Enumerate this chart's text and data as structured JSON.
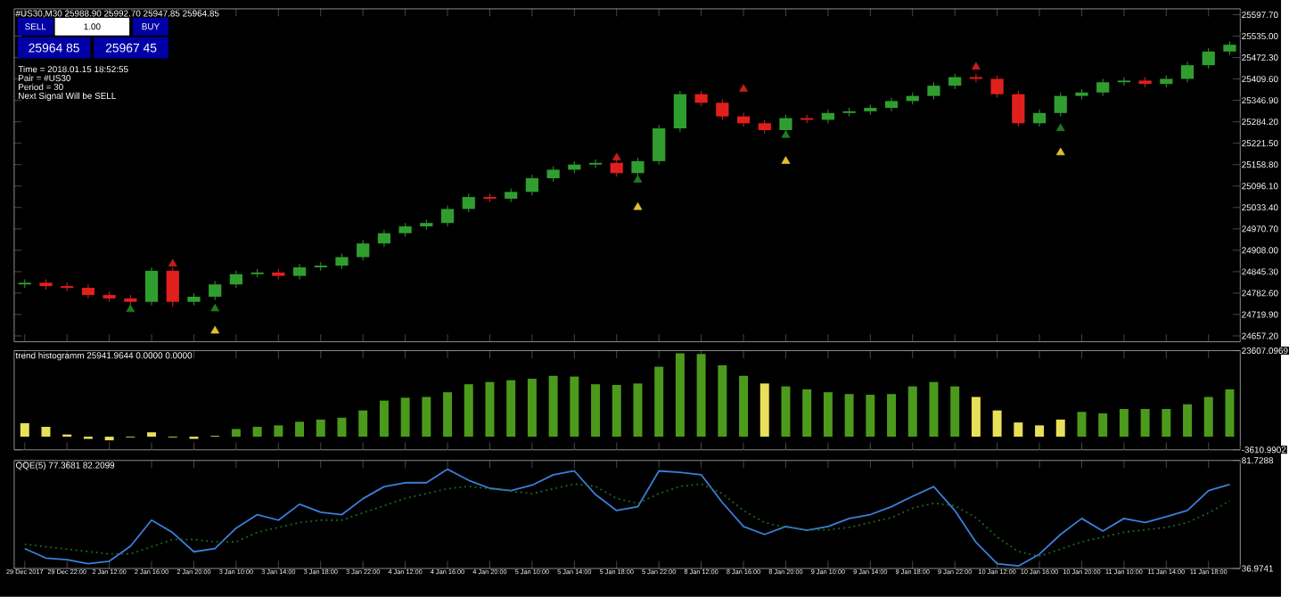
{
  "chart_data": [
    {
      "type": "candlestick",
      "title": "#US30,M30 25988.90 25992.70 25947.85 25964.85",
      "annotations": [
        "SELL",
        "1.00",
        "BUY",
        "25964 85",
        "25967 45",
        "Time = 2018.01.15 18:52:55",
        "Pair = #US30",
        "Period = 30",
        "Next Signal Will be SELL"
      ],
      "categories": [
        null,
        null,
        null,
        null,
        null,
        null,
        null,
        null,
        null,
        null,
        null,
        null,
        null,
        null,
        null,
        null,
        null,
        null,
        null,
        null,
        null,
        null,
        null,
        null,
        null,
        null,
        null,
        null,
        null,
        null,
        null,
        null,
        null,
        null,
        null,
        null,
        null,
        null,
        null,
        null,
        null,
        null,
        null,
        null,
        null,
        null,
        null,
        null,
        null,
        null,
        null,
        null,
        null,
        null,
        null,
        null,
        null,
        null
      ],
      "ohlc": [
        [
          24808,
          24823,
          24798,
          24813
        ],
        [
          24813,
          24823,
          24793,
          24803
        ],
        [
          24803,
          24813,
          24788,
          24798
        ],
        [
          24798,
          24808,
          24767,
          24777
        ],
        [
          24777,
          24787,
          24757,
          24767
        ],
        [
          24767,
          24777,
          24747,
          24757
        ],
        [
          24757,
          24858,
          24747,
          24848
        ],
        [
          24848,
          24858,
          24742,
          24757
        ],
        [
          24757,
          24782,
          24747,
          24772
        ],
        [
          24772,
          24818,
          24762,
          24808
        ],
        [
          24808,
          24848,
          24798,
          24838
        ],
        [
          24838,
          24853,
          24828,
          24843
        ],
        [
          24843,
          24853,
          24823,
          24833
        ],
        [
          24833,
          24868,
          24823,
          24858
        ],
        [
          24858,
          24873,
          24848,
          24863
        ],
        [
          24863,
          24898,
          24853,
          24888
        ],
        [
          24888,
          24938,
          24878,
          24928
        ],
        [
          24928,
          24968,
          24918,
          24958
        ],
        [
          24958,
          24988,
          24948,
          24978
        ],
        [
          24978,
          24998,
          24968,
          24988
        ],
        [
          24988,
          25039,
          24978,
          25029
        ],
        [
          25029,
          25074,
          25019,
          25064
        ],
        [
          25064,
          25074,
          25049,
          25059
        ],
        [
          25059,
          25089,
          25049,
          25079
        ],
        [
          25079,
          25129,
          25069,
          25119
        ],
        [
          25119,
          25154,
          25109,
          25144
        ],
        [
          25144,
          25169,
          25134,
          25159
        ],
        [
          25159,
          25174,
          25149,
          25164
        ],
        [
          25164,
          25174,
          25124,
          25134
        ],
        [
          25134,
          25179,
          25124,
          25169
        ],
        [
          25169,
          25275,
          25159,
          25265
        ],
        [
          25265,
          25375,
          25255,
          25365
        ],
        [
          25365,
          25375,
          25330,
          25340
        ],
        [
          25340,
          25350,
          25290,
          25300
        ],
        [
          25300,
          25310,
          25270,
          25280
        ],
        [
          25280,
          25290,
          25250,
          25260
        ],
        [
          25260,
          25305,
          25250,
          25295
        ],
        [
          25295,
          25305,
          25280,
          25290
        ],
        [
          25290,
          25320,
          25280,
          25310
        ],
        [
          25310,
          25325,
          25300,
          25315
        ],
        [
          25315,
          25335,
          25305,
          25325
        ],
        [
          25325,
          25355,
          25315,
          25345
        ],
        [
          25345,
          25370,
          25335,
          25360
        ],
        [
          25360,
          25400,
          25350,
          25390
        ],
        [
          25390,
          25425,
          25380,
          25415
        ],
        [
          25415,
          25425,
          25400,
          25410
        ],
        [
          25410,
          25420,
          25355,
          25365
        ],
        [
          25365,
          25375,
          25270,
          25280
        ],
        [
          25280,
          25320,
          25270,
          25310
        ],
        [
          25310,
          25370,
          25300,
          25360
        ],
        [
          25360,
          25380,
          25350,
          25370
        ],
        [
          25370,
          25410,
          25360,
          25400
        ],
        [
          25400,
          25415,
          25390,
          25405
        ],
        [
          25405,
          25415,
          25385,
          25395
        ],
        [
          25395,
          25420,
          25385,
          25410
        ],
        [
          25410,
          25460,
          25400,
          25450
        ],
        [
          25450,
          25500,
          25440,
          25490
        ],
        [
          25490,
          25520,
          25480,
          25510
        ]
      ],
      "colors": [
        "#2f9e2f",
        "#e0201c",
        "#e0201c",
        "#e0201c",
        "#e0201c",
        "#e0201c",
        "#2f9e2f",
        "#e0201c",
        "#2f9e2f",
        "#2f9e2f",
        "#2f9e2f",
        "#2f9e2f",
        "#e0201c",
        "#2f9e2f",
        "#2f9e2f",
        "#2f9e2f",
        "#2f9e2f",
        "#2f9e2f",
        "#2f9e2f",
        "#2f9e2f",
        "#2f9e2f",
        "#2f9e2f",
        "#e0201c",
        "#2f9e2f",
        "#2f9e2f",
        "#2f9e2f",
        "#2f9e2f",
        "#2f9e2f",
        "#e0201c",
        "#2f9e2f",
        "#2f9e2f",
        "#2f9e2f",
        "#e0201c",
        "#e0201c",
        "#e0201c",
        "#e0201c",
        "#2f9e2f",
        "#e0201c",
        "#2f9e2f",
        "#2f9e2f",
        "#2f9e2f",
        "#2f9e2f",
        "#2f9e2f",
        "#2f9e2f",
        "#2f9e2f",
        "#e0201c",
        "#e0201c",
        "#e0201c",
        "#2f9e2f",
        "#2f9e2f",
        "#2f9e2f",
        "#2f9e2f",
        "#2f9e2f",
        "#e0201c",
        "#2f9e2f",
        "#2f9e2f",
        "#2f9e2f",
        "#2f9e2f"
      ],
      "series": [
        {
          "type": "scatter",
          "color": "#c0201c",
          "values": [
            null,
            null,
            null,
            null,
            null,
            null,
            null,
            24868,
            null,
            null,
            null,
            null,
            null,
            null,
            null,
            null,
            null,
            null,
            null,
            null,
            null,
            null,
            null,
            null,
            null,
            null,
            null,
            null,
            25179,
            null,
            null,
            null,
            null,
            null,
            25380,
            null,
            null,
            null,
            null,
            null,
            null,
            null,
            null,
            null,
            null,
            25445,
            null,
            null,
            null,
            null,
            null,
            null,
            null,
            null,
            null,
            null,
            null,
            null
          ]
        },
        {
          "type": "scatter",
          "color": "#1f7a1f",
          "values": [
            null,
            null,
            null,
            null,
            null,
            24735,
            null,
            null,
            null,
            24737,
            null,
            null,
            null,
            null,
            null,
            null,
            null,
            null,
            null,
            null,
            null,
            null,
            null,
            null,
            null,
            null,
            null,
            null,
            null,
            25114,
            null,
            null,
            null,
            null,
            null,
            null,
            25245,
            null,
            null,
            null,
            null,
            null,
            null,
            null,
            null,
            null,
            null,
            null,
            null,
            25265,
            null,
            null,
            null,
            null,
            null,
            null,
            null,
            null
          ]
        },
        {
          "type": "scatter",
          "color": "#e0c030",
          "values": [
            null,
            null,
            null,
            null,
            null,
            null,
            null,
            null,
            null,
            24672,
            null,
            null,
            null,
            null,
            null,
            null,
            null,
            null,
            null,
            null,
            null,
            null,
            null,
            null,
            null,
            null,
            null,
            null,
            null,
            25034,
            null,
            null,
            null,
            null,
            null,
            null,
            25169,
            null,
            null,
            null,
            null,
            null,
            null,
            null,
            null,
            null,
            null,
            null,
            null,
            25194,
            null,
            null,
            null,
            null,
            null,
            null,
            null,
            null
          ]
        }
      ],
      "marker": "triangle",
      "ylim": [
        24640,
        25615
      ],
      "yticks": [
        {
          "value": 24657.2,
          "label": "24657.20"
        },
        {
          "value": 24719.9,
          "label": "24719.90"
        },
        {
          "value": 24782.6,
          "label": "24782.60"
        },
        {
          "value": 24845.3,
          "label": "24845.30"
        },
        {
          "value": 24908.0,
          "label": "24908.00"
        },
        {
          "value": 24970.7,
          "label": "24970.70"
        },
        {
          "value": 25033.4,
          "label": "25033.40"
        },
        {
          "value": 25096.1,
          "label": "25096.10"
        },
        {
          "value": 25158.8,
          "label": "25158.80"
        },
        {
          "value": 25221.5,
          "label": "25221.50"
        },
        {
          "value": 25284.2,
          "label": "25284.20"
        },
        {
          "value": 25346.9,
          "label": "25346.90"
        },
        {
          "value": 25409.6,
          "label": "25409.60"
        },
        {
          "value": 25472.3,
          "label": "25472.30"
        },
        {
          "value": 25535.0,
          "label": "25535.00"
        },
        {
          "value": 25597.7,
          "label": "25597.70"
        }
      ],
      "tick_labels": "y"
    },
    {
      "type": "bar",
      "title": "trend histogramm 25941.9644 0.0000 0.0000",
      "categories": [
        null,
        null,
        null,
        null,
        null,
        null,
        null,
        null,
        null,
        null,
        null,
        null,
        null,
        null,
        null,
        null,
        null,
        null,
        null,
        null,
        null,
        null,
        null,
        null,
        null,
        null,
        null,
        null,
        null,
        null,
        null,
        null,
        null,
        null,
        null,
        null,
        null,
        null,
        null,
        null,
        null,
        null,
        null,
        null,
        null,
        null,
        null,
        null,
        null,
        null,
        null,
        null,
        null,
        null,
        null,
        null,
        null,
        null
      ],
      "values": [
        3700,
        2700,
        600,
        -600,
        -1000,
        -200,
        1200,
        -200,
        -600,
        200,
        2100,
        2700,
        3100,
        4100,
        4700,
        5200,
        7200,
        9900,
        10700,
        10900,
        12200,
        14400,
        15000,
        15500,
        15900,
        16700,
        16500,
        14400,
        14200,
        14600,
        19200,
        22900,
        22700,
        19600,
        16700,
        14600,
        13800,
        13000,
        12200,
        11700,
        11500,
        11700,
        13800,
        15000,
        13800,
        10900,
        7200,
        3900,
        3100,
        4700,
        6800,
        6400,
        7600,
        7600,
        7600,
        8900,
        10900,
        13000
      ],
      "colors": [
        "#e8e05a",
        "#e8e05a",
        "#e8e05a",
        "#e8e05a",
        "#e8e05a",
        "#e8e05a",
        "#e8e05a",
        "#e8e05a",
        "#e8e05a",
        "#e8e05a",
        "#4c9a1c",
        "#4c9a1c",
        "#4c9a1c",
        "#4c9a1c",
        "#4c9a1c",
        "#4c9a1c",
        "#4c9a1c",
        "#4c9a1c",
        "#4c9a1c",
        "#4c9a1c",
        "#4c9a1c",
        "#4c9a1c",
        "#4c9a1c",
        "#4c9a1c",
        "#4c9a1c",
        "#4c9a1c",
        "#4c9a1c",
        "#4c9a1c",
        "#4c9a1c",
        "#4c9a1c",
        "#4c9a1c",
        "#4c9a1c",
        "#4c9a1c",
        "#4c9a1c",
        "#4c9a1c",
        "#e8e05a",
        "#4c9a1c",
        "#4c9a1c",
        "#4c9a1c",
        "#4c9a1c",
        "#4c9a1c",
        "#4c9a1c",
        "#4c9a1c",
        "#4c9a1c",
        "#4c9a1c",
        "#e8e05a",
        "#e8e05a",
        "#e8e05a",
        "#e8e05a",
        "#e8e05a",
        "#4c9a1c",
        "#4c9a1c",
        "#4c9a1c",
        "#4c9a1c",
        "#4c9a1c",
        "#4c9a1c",
        "#4c9a1c",
        "#4c9a1c"
      ],
      "ylim": [
        -3610.9902,
        23607.0969
      ],
      "yticks": [
        {
          "value": -3610.9902,
          "label": "-3610.9902"
        },
        {
          "value": 23607.0969,
          "label": "23607.0969"
        }
      ],
      "tick_labels": "y"
    },
    {
      "type": "line",
      "title": "QQE(5) 77.3681 82.2099",
      "categories": [
        "29 Dec 2017",
        null,
        "29 Dec 22:00",
        null,
        "2 Jan 12:00",
        null,
        "2 Jan 16:00",
        null,
        "2 Jan 20:00",
        null,
        "3 Jan 10:00",
        null,
        "3 Jan 14:00",
        null,
        "3 Jan 18:00",
        null,
        "3 Jan 22:00",
        null,
        "4 Jan 12:00",
        null,
        "4 Jan 16:00",
        null,
        "4 Jan 20:00",
        null,
        "5 Jan 10:00",
        null,
        "5 Jan 14:00",
        null,
        "5 Jan 18:00",
        null,
        "5 Jan 22:00",
        null,
        "8 Jan 12:00",
        null,
        "8 Jan 16:00",
        null,
        "8 Jan 20:00",
        null,
        "9 Jan 10:00",
        null,
        "9 Jan 14:00",
        null,
        "9 Jan 18:00",
        null,
        "9 Jan 22:00",
        null,
        "10 Jan 12:00",
        null,
        "10 Jan 16:00",
        null,
        "10 Jan 20:00",
        null,
        "11 Jan 10:00",
        null,
        "11 Jan 14:00",
        null,
        "11 Jan 18:00",
        null
      ],
      "series": [
        {
          "color": "#3a80d8",
          "line_style": "solid",
          "values": [
            45.2,
            41.3,
            40.6,
            39.0,
            40.0,
            46.2,
            57.0,
            51.8,
            43.9,
            45.2,
            53.7,
            59.3,
            57.0,
            63.6,
            60.3,
            59.3,
            65.9,
            70.9,
            72.5,
            72.5,
            78.1,
            73.5,
            70.2,
            69.2,
            71.5,
            75.8,
            77.4,
            67.6,
            61.0,
            62.6,
            77.4,
            76.8,
            75.8,
            64.3,
            54.4,
            51.1,
            54.4,
            52.8,
            54.4,
            57.7,
            59.3,
            62.6,
            66.9,
            70.9,
            61.0,
            47.8,
            39.0,
            38.0,
            42.9,
            51.1,
            57.7,
            52.5,
            57.7,
            56.0,
            58.4,
            61.0,
            69.2,
            71.8
          ]
        },
        {
          "color": "#1f6f1f",
          "line_style": "dotted",
          "values": [
            47,
            46,
            45,
            44,
            43,
            43,
            46,
            49,
            49,
            48,
            48,
            52,
            54,
            56,
            57,
            57,
            60,
            63,
            66,
            68,
            70,
            71,
            70,
            69,
            68,
            70,
            72,
            71,
            66,
            64,
            68,
            71,
            72,
            68,
            61,
            56,
            54,
            53,
            53,
            54,
            56,
            58,
            62,
            64,
            63,
            58,
            50,
            44,
            42,
            45,
            48,
            50,
            52,
            53,
            54,
            56,
            60,
            65
          ]
        }
      ],
      "ylim": [
        36.9741,
        81.7288
      ],
      "yticks": [
        {
          "value": 36.9741,
          "label": "36.9741"
        },
        {
          "value": 81.7288,
          "label": "81.7288"
        }
      ]
    }
  ]
}
